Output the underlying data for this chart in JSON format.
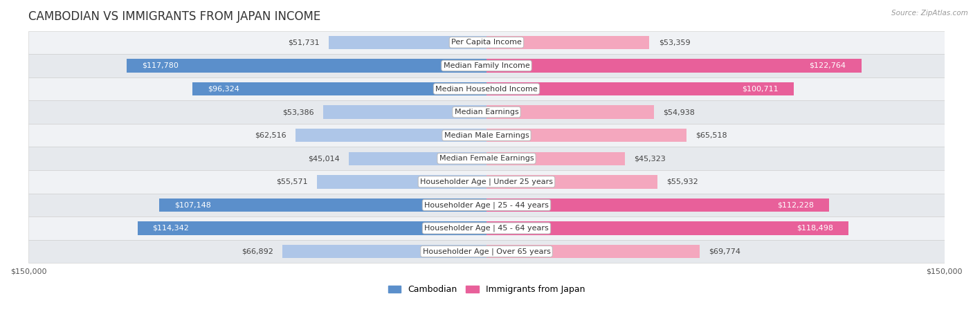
{
  "title": "CAMBODIAN VS IMMIGRANTS FROM JAPAN INCOME",
  "source": "Source: ZipAtlas.com",
  "categories": [
    "Per Capita Income",
    "Median Family Income",
    "Median Household Income",
    "Median Earnings",
    "Median Male Earnings",
    "Median Female Earnings",
    "Householder Age | Under 25 years",
    "Householder Age | 25 - 44 years",
    "Householder Age | 45 - 64 years",
    "Householder Age | Over 65 years"
  ],
  "cambodian_values": [
    51731,
    117780,
    96324,
    53386,
    62516,
    45014,
    55571,
    107148,
    114342,
    66892
  ],
  "japan_values": [
    53359,
    122764,
    100711,
    54938,
    65518,
    45323,
    55932,
    112228,
    118498,
    69774
  ],
  "cambodian_labels": [
    "$51,731",
    "$117,780",
    "$96,324",
    "$53,386",
    "$62,516",
    "$45,014",
    "$55,571",
    "$107,148",
    "$114,342",
    "$66,892"
  ],
  "japan_labels": [
    "$53,359",
    "$122,764",
    "$100,711",
    "$54,938",
    "$65,518",
    "$45,323",
    "$55,932",
    "$112,228",
    "$118,498",
    "$69,774"
  ],
  "max_value": 150000,
  "cambodian_color_light": "#aec6e8",
  "cambodian_color_dark": "#5b8fcb",
  "japan_color_light": "#f4a7be",
  "japan_color_dark": "#e8609a",
  "bar_height": 0.58,
  "title_fontsize": 12,
  "label_fontsize": 8.0,
  "axis_label_fontsize": 8,
  "legend_fontsize": 9,
  "threshold_dark_label": 80000,
  "left_axis_label": "$150,000",
  "right_axis_label": "$150,000"
}
